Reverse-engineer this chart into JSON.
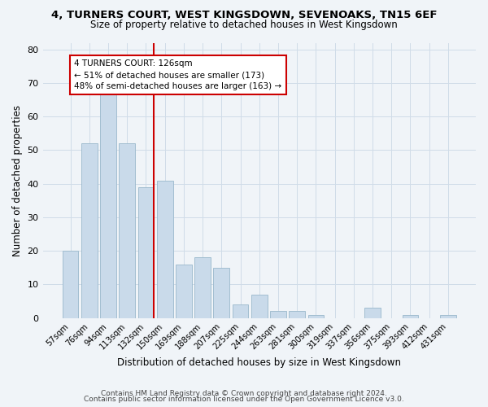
{
  "title_line1": "4, TURNERS COURT, WEST KINGSDOWN, SEVENOAKS, TN15 6EF",
  "title_line2": "Size of property relative to detached houses in West Kingsdown",
  "xlabel": "Distribution of detached houses by size in West Kingsdown",
  "ylabel": "Number of detached properties",
  "bar_labels": [
    "57sqm",
    "76sqm",
    "94sqm",
    "113sqm",
    "132sqm",
    "150sqm",
    "169sqm",
    "188sqm",
    "207sqm",
    "225sqm",
    "244sqm",
    "263sqm",
    "281sqm",
    "300sqm",
    "319sqm",
    "337sqm",
    "356sqm",
    "375sqm",
    "393sqm",
    "412sqm",
    "431sqm"
  ],
  "bar_values": [
    20,
    52,
    67,
    52,
    39,
    41,
    16,
    18,
    15,
    4,
    7,
    2,
    2,
    1,
    0,
    0,
    3,
    0,
    1,
    0,
    1
  ],
  "bar_color": "#c9daea",
  "bar_edge_color": "#9ab8cc",
  "vline_color": "#cc0000",
  "annotation_text": "4 TURNERS COURT: 126sqm\n← 51% of detached houses are smaller (173)\n48% of semi-detached houses are larger (163) →",
  "annotation_box_facecolor": "#ffffff",
  "annotation_box_edgecolor": "#cc0000",
  "ylim": [
    0,
    82
  ],
  "yticks": [
    0,
    10,
    20,
    30,
    40,
    50,
    60,
    70,
    80
  ],
  "grid_color": "#d0dce8",
  "footer_line1": "Contains HM Land Registry data © Crown copyright and database right 2024.",
  "footer_line2": "Contains public sector information licensed under the Open Government Licence v3.0.",
  "bg_color": "#f0f4f8",
  "plot_bg_color": "#f0f4f8"
}
